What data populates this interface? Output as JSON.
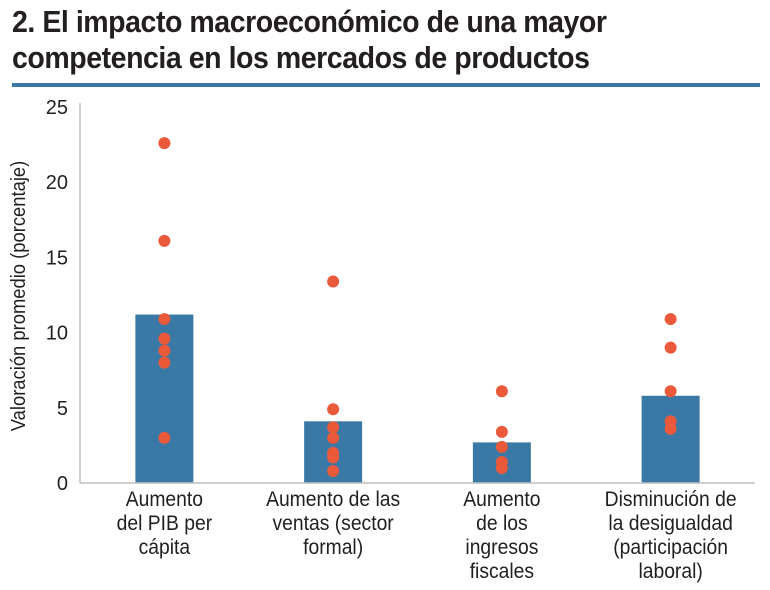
{
  "title_line1": "2. El impacto macroeconómico de una mayor",
  "title_line2": "competencia en los mercados de productos",
  "colors": {
    "bar": "#3a78a6",
    "dot": "#ea5a3a",
    "rule": "#3a78a6",
    "axis": "#bfbfbf",
    "text": "#231f20"
  },
  "chart_data": {
    "type": "bar",
    "title": "2. El impacto macroeconómico de una mayor competencia en los mercados de productos",
    "ylabel": "Valoración promedio (porcentaje)",
    "ylim": [
      0,
      25
    ],
    "yticks": [
      0,
      5,
      10,
      15,
      20,
      25
    ],
    "grid": false,
    "categories": [
      [
        "Aumento",
        "del PIB per",
        "cápita"
      ],
      [
        "Aumento de las",
        "ventas (sector",
        "formal)"
      ],
      [
        "Aumento",
        "de los",
        "ingresos",
        "fiscales"
      ],
      [
        "Disminución de",
        "la desigualdad",
        "(participación",
        "laboral)"
      ]
    ],
    "values": [
      11.2,
      4.1,
      2.7,
      5.8
    ],
    "points": [
      [
        22.6,
        16.1,
        10.9,
        9.6,
        8.8,
        8.0,
        3.0
      ],
      [
        13.4,
        4.9,
        3.7,
        3.0,
        2.0,
        1.7,
        0.8
      ],
      [
        6.1,
        3.4,
        2.4,
        1.4,
        1.0
      ],
      [
        10.9,
        9.0,
        6.1,
        4.1,
        3.6
      ]
    ]
  }
}
